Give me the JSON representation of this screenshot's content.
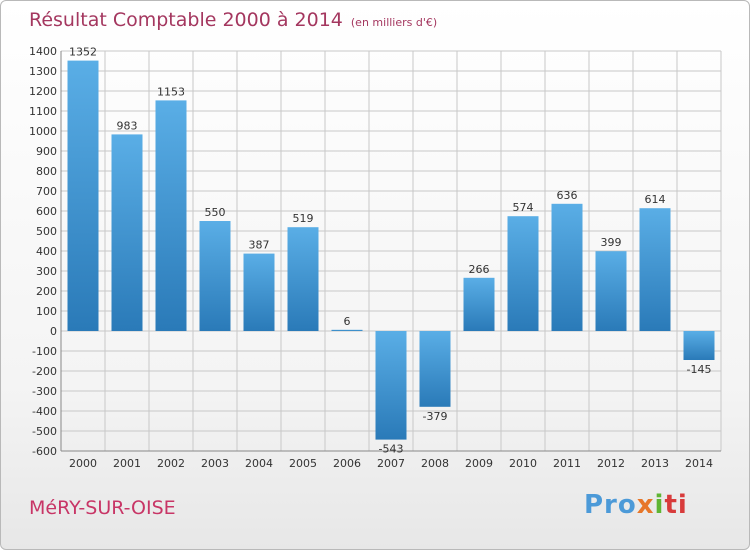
{
  "header": {
    "title": "Résultat Comptable 2000 à 2014",
    "subtitle": "(en milliers d'€)"
  },
  "footer": {
    "commune": "MéRY-SUR-OISE",
    "logo": [
      "Pro",
      "x",
      "i",
      "ti"
    ]
  },
  "colors": {
    "bar_top": "#5aaee6",
    "bar_bottom": "#2a7ab8",
    "title": "#a4375f",
    "commune": "#c83566",
    "grid": "#c8c8c8"
  },
  "chart_data": {
    "type": "bar",
    "title": "Résultat Comptable 2000 à 2014",
    "subtitle": "(en milliers d'€)",
    "xlabel": "",
    "ylabel": "",
    "categories": [
      "2000",
      "2001",
      "2002",
      "2003",
      "2004",
      "2005",
      "2006",
      "2007",
      "2008",
      "2009",
      "2010",
      "2011",
      "2012",
      "2013",
      "2014"
    ],
    "values": [
      1352,
      983,
      1153,
      550,
      387,
      519,
      6,
      -543,
      -379,
      266,
      574,
      636,
      399,
      614,
      -145
    ],
    "ylim": [
      -600,
      1400
    ],
    "yticks": [
      -600,
      -500,
      -400,
      -300,
      -200,
      -100,
      0,
      100,
      200,
      300,
      400,
      500,
      600,
      700,
      800,
      900,
      1000,
      1100,
      1200,
      1300,
      1400
    ],
    "grid": true,
    "legend": "none"
  }
}
